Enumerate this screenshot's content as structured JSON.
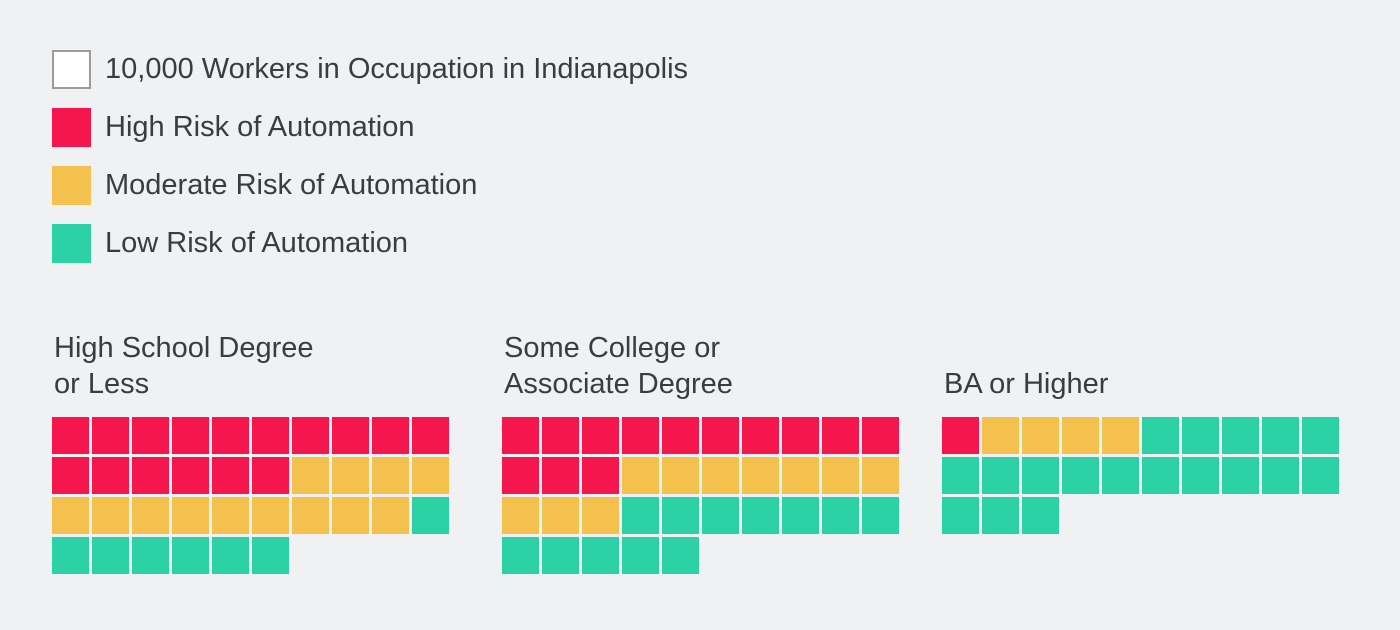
{
  "page": {
    "background": "#F0F1F3",
    "text_color": "#3B3C3E"
  },
  "legend": {
    "items": [
      {
        "id": "unit",
        "label": "10,000 Workers in Occupation in Indianapolis",
        "fill": "#FFFFFF",
        "border": "#9B9B9B"
      },
      {
        "id": "high",
        "label": "High Risk of Automation",
        "fill": "#F5164E",
        "border": ""
      },
      {
        "id": "moderate",
        "label": "Moderate Risk of Automation",
        "fill": "#F4C14E",
        "border": ""
      },
      {
        "id": "low",
        "label": "Low Risk of Automation",
        "fill": "#2CD1A6",
        "border": ""
      }
    ]
  },
  "chart_data": {
    "type": "waffle",
    "unit_label": "10,000 Workers in Occupation in Indianapolis",
    "unit_value": 10000,
    "legend_position": "top-left",
    "cell_codes": {
      "H": "high",
      "M": "moderate",
      "L": "low"
    },
    "colors": {
      "high": "#F5164E",
      "moderate": "#F4C14E",
      "low": "#2CD1A6"
    },
    "groups": [
      {
        "title": "High School Degree\nor Less",
        "rows": [
          "HHHHHHHHHH",
          "HHHHHHMMMM",
          "MMMMMMMMML",
          "LLLLLL"
        ],
        "counts": {
          "high": 16,
          "moderate": 13,
          "low": 7
        },
        "total_squares": 36
      },
      {
        "title": "Some College or\nAssociate Degree",
        "rows": [
          "HHHHHHHHHH",
          "HHHMMMMMMM",
          "MMMLLLLLLL",
          "LLLLL"
        ],
        "counts": {
          "high": 13,
          "moderate": 10,
          "low": 12
        },
        "total_squares": 35
      },
      {
        "title": "BA or Higher",
        "rows": [
          "HMMMMLLLLL",
          "LLLLLLLLLL",
          "LLL"
        ],
        "counts": {
          "high": 1,
          "moderate": 4,
          "low": 18
        },
        "total_squares": 23
      }
    ]
  }
}
